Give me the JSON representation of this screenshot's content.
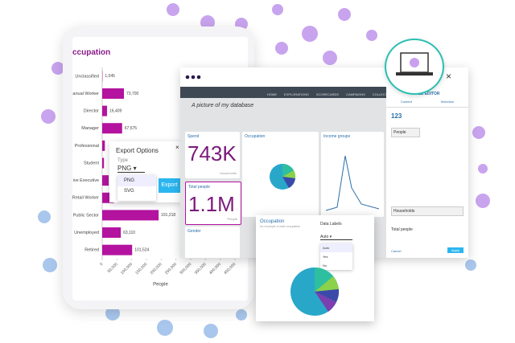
{
  "tablet": {
    "title": "ccupation",
    "chart": {
      "type": "bar",
      "categories": [
        "Unclassified",
        "anual Worker",
        "Director",
        "Manager",
        "Professional",
        "Student",
        "ive Executive",
        "Retail Worker",
        "Public Sector",
        "Unemployed",
        "Retired"
      ],
      "values": [
        1045,
        73700,
        16409,
        67575,
        9000,
        6000,
        22000,
        40000,
        191218,
        63110,
        101524
      ],
      "value_labels": [
        "1,045",
        "73,700",
        "16,409",
        "67,575",
        null,
        null,
        null,
        null,
        "191,218",
        "63,110",
        "101,524"
      ],
      "color": "#b3139f",
      "xlim": [
        0,
        450000
      ],
      "xticks": [
        0,
        {
          "value": 50000,
          "label": "50,000"
        },
        {
          "value": 100000,
          "label": "100,000"
        },
        {
          "value": 150000,
          "label": "150,000"
        },
        {
          "value": 200000,
          "label": "200,000"
        },
        {
          "value": 250000,
          "label": "250,000"
        },
        {
          "value": 300000,
          "label": "300,000"
        },
        {
          "value": 350000,
          "label": "350,000"
        },
        {
          "value": 400000,
          "label": "400,000"
        },
        {
          "value": 450000,
          "label": "450,000"
        }
      ],
      "xlabel": "People"
    }
  },
  "export_dialog": {
    "title": "Export Options",
    "type_label": "Type",
    "selected": "PNG",
    "options": [
      "PNG",
      "SVG"
    ],
    "button": "Export"
  },
  "dashboard": {
    "title": "A picture of my database",
    "tabs": [
      "HOME",
      "EXPLORATIONS",
      "SCORECARDS",
      "CAMPAIGNS",
      "COLLECTIONS"
    ],
    "tiles": [
      {
        "title": "Spend",
        "value": "743K",
        "unit": "Households"
      },
      {
        "title": "Total people",
        "value": "1.1M",
        "unit": "People"
      },
      {
        "title": "Occupation"
      },
      {
        "title": "Income groups"
      },
      {
        "title": "Gender"
      }
    ]
  },
  "tile_editor": {
    "title": "TILE EDITOR",
    "tabs": [
      "Content",
      "Selection"
    ],
    "number": "123",
    "fields": [
      "People",
      "Households",
      "Total people"
    ],
    "buttons": [
      "Cancel",
      "Apply"
    ]
  },
  "popup": {
    "title": "Occupation",
    "subtitle": "No of people in each occupation",
    "menu_label": "Data Labels",
    "selected": "Auto",
    "options": [
      "Auto",
      "Yes",
      "No"
    ]
  }
}
